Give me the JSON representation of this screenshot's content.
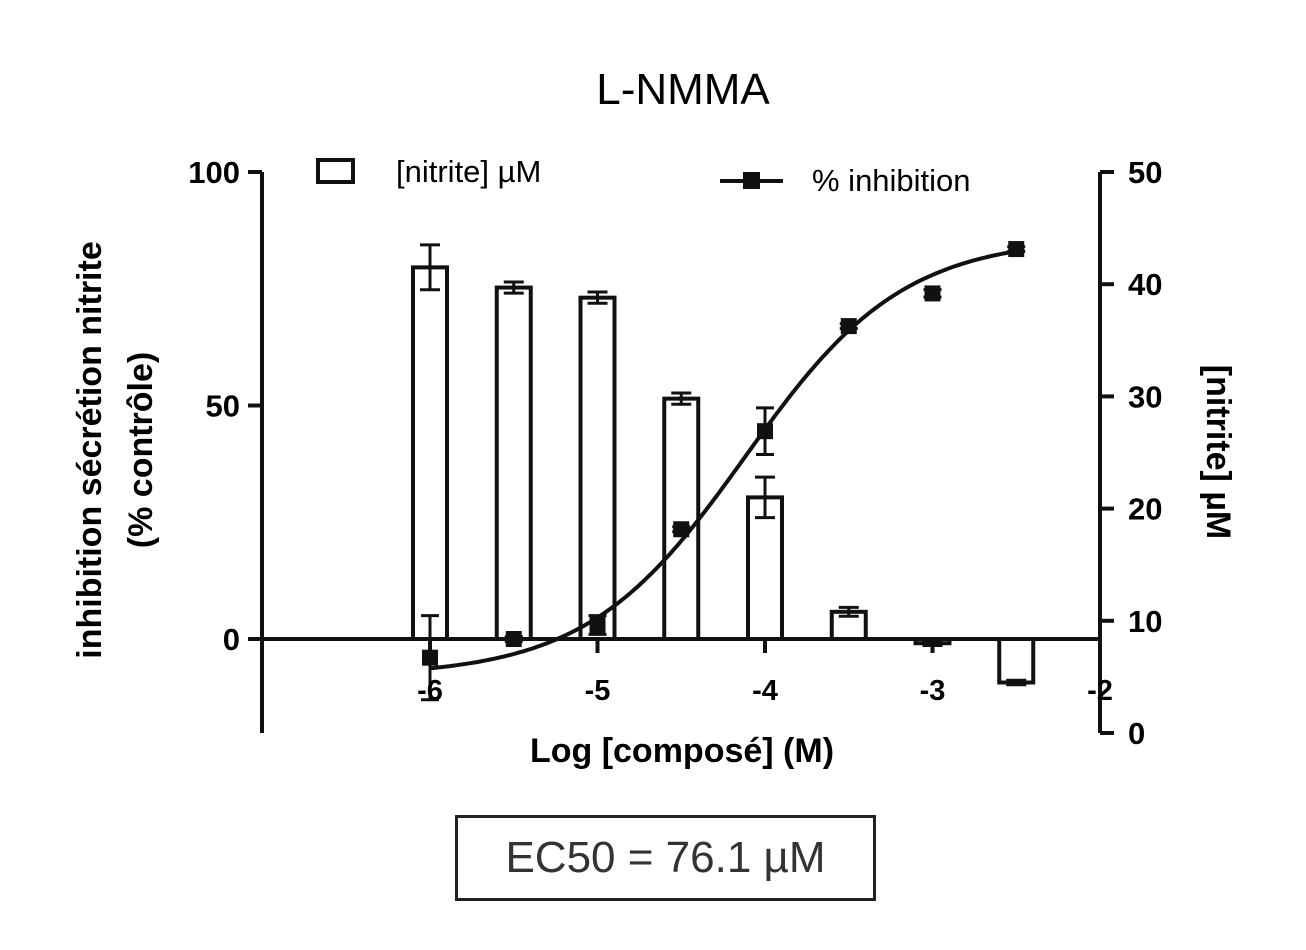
{
  "chart_data": {
    "type": "bar+line",
    "title": "L-NMMA",
    "xlabel": "Log [composé] (M)",
    "ylabel_left_line1": "inhibition sécrétion nitrite",
    "ylabel_left_line2": "(% contrôle)",
    "ylabel_right": "[nitrite] µM",
    "xlim": [
      -7,
      -2
    ],
    "x_ticks": [
      -6,
      -5,
      -4,
      -3,
      -2
    ],
    "x_tick_labels": [
      "-6",
      "-5",
      "-4",
      "-3",
      "-2"
    ],
    "ylim_left": [
      -20,
      100
    ],
    "y_left_ticks": [
      0,
      50,
      100
    ],
    "y_left_tick_labels": [
      "0",
      "50",
      "100"
    ],
    "ylim_right": [
      0,
      50
    ],
    "y_right_ticks": [
      0,
      10,
      20,
      30,
      40,
      50
    ],
    "y_right_tick_labels": [
      "0",
      "10",
      "20",
      "30",
      "40",
      "50"
    ],
    "legend": {
      "bar_label": "[nitrite] µM",
      "line_label": "% inhibition",
      "placement": "top"
    },
    "series": [
      {
        "name": "[nitrite] µM",
        "kind": "bar",
        "axis": "right",
        "x": [
          -6,
          -5.5,
          -5,
          -4.5,
          -4,
          -3.5,
          -3,
          -2.5
        ],
        "values": [
          41.5,
          39.7,
          38.8,
          29.8,
          21.0,
          10.8,
          8.0,
          4.5
        ],
        "errors": [
          2.0,
          0.5,
          0.5,
          0.5,
          1.8,
          0.4,
          0.2,
          0.2
        ]
      },
      {
        "name": "% inhibition",
        "kind": "points+fit",
        "axis": "left",
        "x": [
          -6,
          -5.5,
          -5,
          -4.5,
          -4,
          -3.5,
          -3,
          -2.5
        ],
        "values": [
          -4,
          0,
          3,
          23.5,
          44.5,
          67,
          74,
          83.5
        ],
        "errors": [
          9,
          0.5,
          2,
          0.5,
          5,
          0.5,
          0.8,
          0.5
        ],
        "fit": {
          "bottom": -8,
          "top": 86,
          "log_ec50": -4.119,
          "hill": 0.92
        }
      }
    ],
    "annotation": "EC50 = 76.1 µM"
  }
}
